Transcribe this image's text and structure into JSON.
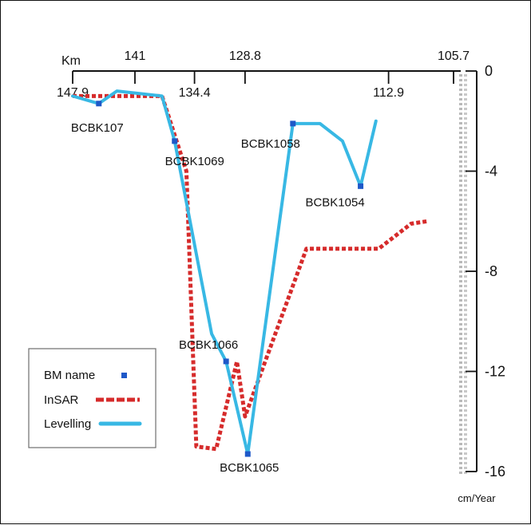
{
  "chart_data": {
    "type": "line",
    "title": "",
    "xlabel": "Km",
    "ylabel": "cm/Year",
    "xlim": [
      147.9,
      105.7
    ],
    "ylim": [
      -16,
      0
    ],
    "x_ticks_top": [
      {
        "value": 141,
        "label": "141"
      },
      {
        "value": 128.8,
        "label": "128.8"
      },
      {
        "value": 105.7,
        "label": "105.7"
      }
    ],
    "x_ticks_bottom": [
      {
        "value": 147.9,
        "label": "147.9"
      },
      {
        "value": 134.4,
        "label": "134.4"
      },
      {
        "value": 112.9,
        "label": "112.9"
      }
    ],
    "y_ticks": [
      {
        "value": 0,
        "label": "0"
      },
      {
        "value": -4,
        "label": "-4"
      },
      {
        "value": -8,
        "label": "-8"
      },
      {
        "value": -12,
        "label": "-12"
      },
      {
        "value": -16,
        "label": "-16"
      }
    ],
    "grid": false,
    "legend_position": "bottom-left",
    "series": [
      {
        "name": "InSAR",
        "style": "dashed",
        "color": "#d62b2b",
        "points": [
          {
            "x": 147.9,
            "y": -1.0
          },
          {
            "x": 138.0,
            "y": -1.0
          },
          {
            "x": 135.3,
            "y": -4.0
          },
          {
            "x": 134.2,
            "y": -15.0
          },
          {
            "x": 132.0,
            "y": -15.1
          },
          {
            "x": 129.7,
            "y": -11.6
          },
          {
            "x": 128.8,
            "y": -13.8
          },
          {
            "x": 122.0,
            "y": -7.1
          },
          {
            "x": 114.0,
            "y": -7.1
          },
          {
            "x": 110.4,
            "y": -6.1
          },
          {
            "x": 108.6,
            "y": -6.0
          }
        ]
      },
      {
        "name": "Levelling",
        "style": "solid",
        "color": "#38b8e4",
        "points": [
          {
            "x": 147.9,
            "y": -1.0
          },
          {
            "x": 145.0,
            "y": -1.3
          },
          {
            "x": 143.0,
            "y": -0.8
          },
          {
            "x": 138.0,
            "y": -1.0
          },
          {
            "x": 136.6,
            "y": -2.8
          },
          {
            "x": 132.5,
            "y": -10.5
          },
          {
            "x": 130.9,
            "y": -11.6
          },
          {
            "x": 128.5,
            "y": -15.3
          },
          {
            "x": 123.5,
            "y": -2.1
          },
          {
            "x": 120.5,
            "y": -2.1
          },
          {
            "x": 118.0,
            "y": -2.8
          },
          {
            "x": 116.0,
            "y": -4.6
          },
          {
            "x": 114.3,
            "y": -2.0
          }
        ]
      }
    ],
    "benchmarks": [
      {
        "name": "BCBK107",
        "x": 145.0,
        "y": -1.3,
        "label_anchor": "below"
      },
      {
        "name": "BCBK1069",
        "x": 136.6,
        "y": -2.8,
        "label_anchor": "below"
      },
      {
        "name": "BCBK1066",
        "x": 130.9,
        "y": -11.6,
        "label_anchor": "above"
      },
      {
        "name": "BCBK1065",
        "x": 128.5,
        "y": -15.3,
        "label_anchor": "below"
      },
      {
        "name": "BCBK1058",
        "x": 123.5,
        "y": -2.1,
        "label_anchor": "below"
      },
      {
        "name": "BCBK1054",
        "x": 116.0,
        "y": -4.6,
        "label_anchor": "below"
      }
    ],
    "legend": [
      {
        "label": "BM name",
        "kind": "marker",
        "color": "#1e58c8"
      },
      {
        "label": "InSAR",
        "kind": "dashed-line",
        "color": "#d62b2b"
      },
      {
        "label": "Levelling",
        "kind": "solid-line",
        "color": "#38b8e4"
      }
    ]
  }
}
